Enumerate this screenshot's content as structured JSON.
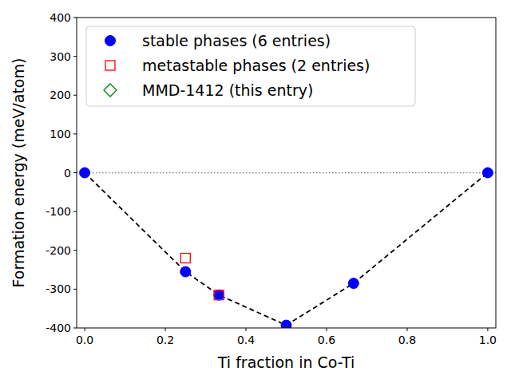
{
  "chart_data": {
    "type": "scatter",
    "x_label": "Ti fraction in Co-Ti",
    "y_label": "Formation energy (meV/atom)",
    "xlim": [
      -0.02,
      1.02
    ],
    "ylim": [
      -400,
      400
    ],
    "xticks": [
      {
        "value": 0,
        "label": "0.0"
      },
      {
        "value": 0.2,
        "label": "0.2"
      },
      {
        "value": 0.4,
        "label": "0.4"
      },
      {
        "value": 0.6,
        "label": "0.6"
      },
      {
        "value": 0.8,
        "label": "0.8"
      },
      {
        "value": 1,
        "label": "1.0"
      }
    ],
    "yticks": [
      -400,
      -300,
      -200,
      -100,
      0,
      100,
      200,
      300,
      400
    ],
    "hline": 0,
    "legend": "upper left",
    "grid": false,
    "series": [
      {
        "name": "stable phases (6 entries)",
        "color": "#0000ff",
        "marker": "circle",
        "line_style": "dashed",
        "x": [
          0,
          0.25,
          0.333,
          0.5,
          0.667,
          1
        ],
        "values": [
          0,
          -255,
          -315,
          -393,
          -285,
          0
        ]
      },
      {
        "name": "metastable phases (2 entries)",
        "color": "#ff0000",
        "marker": "square",
        "x": [
          0.25,
          0.333
        ],
        "values": [
          -220,
          -315
        ]
      },
      {
        "name": "MMD-1412 (this entry)",
        "color": "#008000",
        "marker": "diamond",
        "x": [],
        "values": []
      }
    ]
  }
}
